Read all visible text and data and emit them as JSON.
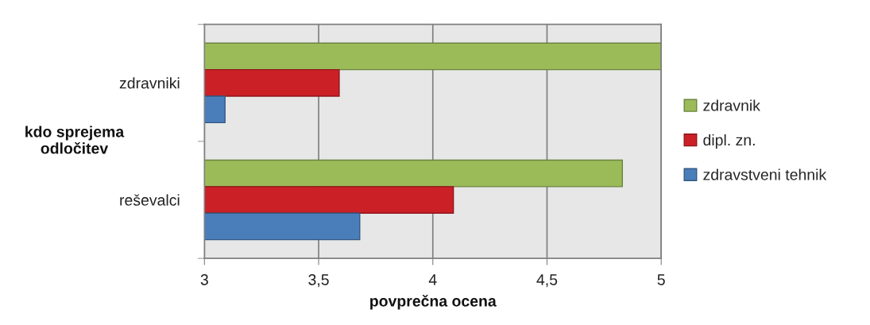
{
  "chart_data": {
    "type": "bar",
    "orientation": "horizontal",
    "categories": [
      "zdravniki",
      "reševalci"
    ],
    "series": [
      {
        "name": "zdravnik",
        "color": "#9bbb59",
        "values": [
          5.0,
          4.83
        ]
      },
      {
        "name": "dipl. zn.",
        "color": "#cc2027",
        "values": [
          3.59,
          4.09
        ]
      },
      {
        "name": "zdravstveni tehnik",
        "color": "#4a7ebb",
        "values": [
          3.09,
          3.68
        ]
      }
    ],
    "xlim": [
      3,
      5
    ],
    "xticks": [
      3,
      {
        "value": 3.5,
        "label": "3,5"
      },
      4,
      {
        "value": 4.5,
        "label": "4,5"
      },
      5
    ],
    "xlabel": "povprečna ocena",
    "ylabel": "kdo sprejema\nodločitev",
    "grid": "x",
    "legend": "right"
  }
}
